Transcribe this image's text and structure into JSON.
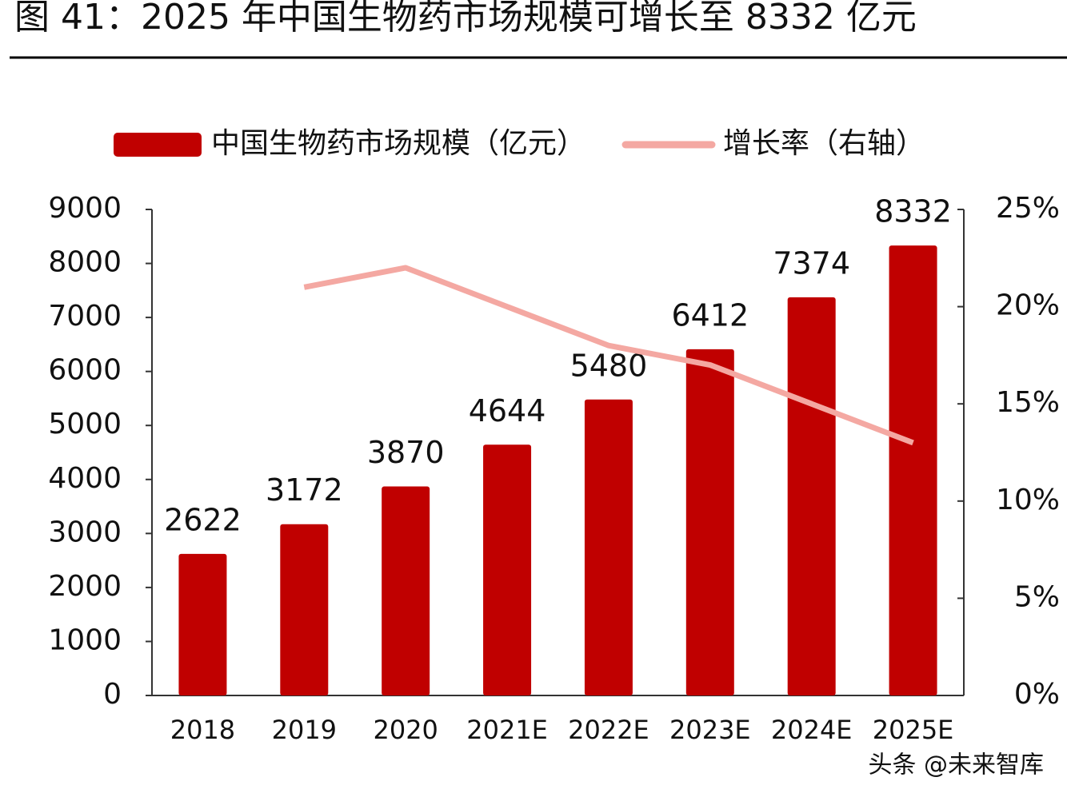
{
  "chart_data": {
    "type": "bar",
    "title": "图 41：2025 年中国生物药市场规模可增长至 8332 亿元",
    "categories": [
      "2018",
      "2019",
      "2020",
      "2021E",
      "2022E",
      "2023E",
      "2024E",
      "2025E"
    ],
    "series": [
      {
        "name": "中国生物药市场规模（亿元）",
        "type": "bar",
        "color": "#c00000",
        "values": [
          2622,
          3172,
          3870,
          4644,
          5480,
          6412,
          7374,
          8332
        ]
      },
      {
        "name": "增长率（右轴）",
        "type": "line",
        "axis": "y2",
        "color": "#f4a8a2",
        "values": [
          null,
          21,
          22,
          20,
          18,
          17,
          15,
          13
        ]
      }
    ],
    "ylim": [
      0,
      9000
    ],
    "yticks": [
      0,
      1000,
      2000,
      3000,
      4000,
      5000,
      6000,
      7000,
      8000,
      9000
    ],
    "y2lim": [
      0,
      25
    ],
    "y2ticks": [
      {
        "value": 0,
        "label": "0%"
      },
      {
        "value": 5,
        "label": "5%"
      },
      {
        "value": 10,
        "label": "10%"
      },
      {
        "value": 15,
        "label": "15%"
      },
      {
        "value": 20,
        "label": "20%"
      },
      {
        "value": 25,
        "label": "25%"
      }
    ],
    "legend": "top",
    "watermark": "头条 @未来智库"
  }
}
